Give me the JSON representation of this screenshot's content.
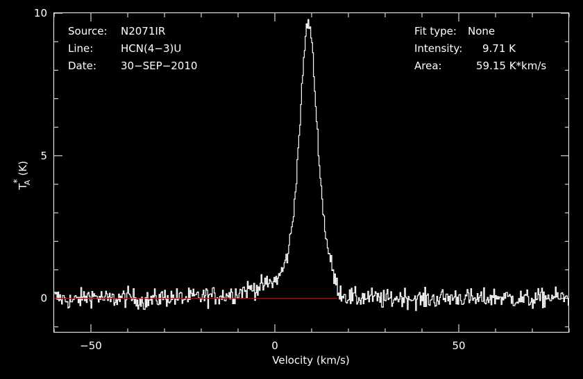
{
  "chart_data": {
    "type": "line",
    "title": "",
    "xlabel": "Velocity (km/s)",
    "ylabel": "T*A (K)",
    "ylabel_main": "T",
    "ylabel_sub": "A",
    "ylabel_sup": "*",
    "ylabel_unit": "(K)",
    "xlim": [
      -60,
      80
    ],
    "ylim": [
      -1.2,
      10
    ],
    "xticks": [
      {
        "value": -50,
        "label": "−50"
      },
      {
        "value": 0,
        "label": "0"
      },
      {
        "value": 50,
        "label": "50"
      }
    ],
    "yticks": [
      {
        "value": 0,
        "label": "0"
      },
      {
        "value": 5,
        "label": "5"
      },
      {
        "value": 10,
        "label": "10"
      }
    ],
    "grid": false,
    "colors": {
      "background": "#000000",
      "spectrum": "#ffffff",
      "baseline": "#cc0000",
      "frame": "#ffffff"
    },
    "series": [
      {
        "style": "histogram",
        "x": [
          -60,
          -55,
          -50,
          -45,
          -40,
          -35,
          -30,
          -25,
          -20,
          -15,
          -12,
          -10,
          -8,
          -6,
          -4,
          -2,
          0,
          1,
          2,
          3,
          4,
          5,
          6,
          7,
          8,
          8.5,
          9,
          9.5,
          10,
          10.5,
          11,
          12,
          13,
          14,
          15,
          16,
          17,
          18,
          20,
          22,
          25,
          30,
          35,
          40,
          45,
          50,
          55,
          60,
          65,
          70,
          75,
          80
        ],
        "values": [
          0.05,
          -0.1,
          0.1,
          -0.05,
          0.05,
          -0.1,
          0.05,
          0.0,
          0.05,
          0.1,
          0.15,
          0.2,
          0.3,
          0.35,
          0.4,
          0.5,
          0.6,
          0.75,
          0.95,
          1.3,
          1.9,
          2.8,
          4.5,
          6.5,
          8.6,
          9.4,
          9.7,
          9.5,
          9.1,
          8.2,
          7.0,
          5.0,
          3.2,
          2.1,
          1.4,
          0.8,
          0.4,
          0.2,
          0.05,
          0.0,
          0.05,
          -0.05,
          0.05,
          -0.05,
          0.0,
          0.05,
          -0.05,
          0.05,
          0.0,
          -0.05,
          0.05,
          0.0
        ]
      },
      {
        "style": "baseline",
        "x": [
          -60,
          17
        ],
        "values": [
          0,
          0
        ]
      }
    ],
    "annotations": {
      "left": [
        {
          "key": "Source:",
          "value": "N2071IR"
        },
        {
          "key": "Line:",
          "value": "HCN(4−3)U"
        },
        {
          "key": "Date:",
          "value": "30−SEP−2010"
        }
      ],
      "right": [
        {
          "key": "Fit type:",
          "value": "None"
        },
        {
          "key": "Intensity:",
          "value": "9.71 K"
        },
        {
          "key": "Area:",
          "value": "59.15 K*km/s"
        }
      ]
    }
  }
}
